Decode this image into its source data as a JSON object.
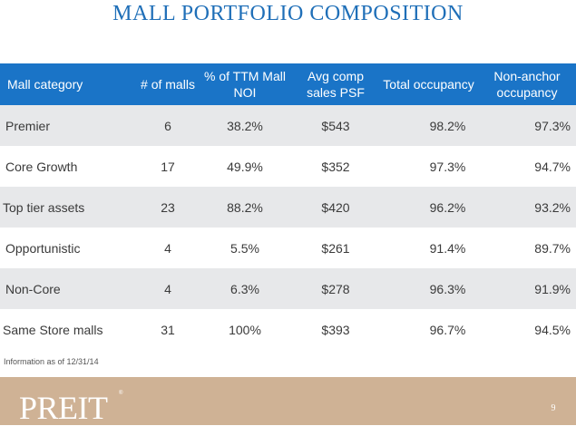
{
  "page": {
    "title": "MALL PORTFOLIO COMPOSITION",
    "footnote": "Information as of 12/31/14"
  },
  "table": {
    "headers": [
      "Mall category",
      "# of malls",
      "% of TTM Mall NOI",
      "Avg comp sales PSF",
      "Total occupancy",
      "Non-anchor occupancy"
    ],
    "rows": [
      [
        "Premier",
        "6",
        "38.2%",
        "$543",
        "98.2%",
        "97.3%"
      ],
      [
        "Core Growth",
        "17",
        "49.9%",
        "$352",
        "97.3%",
        "94.7%"
      ],
      [
        "Top tier assets",
        "23",
        "88.2%",
        "$420",
        "96.2%",
        "93.2%"
      ],
      [
        "Opportunistic",
        "4",
        "5.5%",
        "$261",
        "91.4%",
        "89.7%"
      ],
      [
        "Non-Core",
        "4",
        "6.3%",
        "$278",
        "96.3%",
        "91.9%"
      ],
      [
        "Same Store malls",
        "31",
        "100%",
        "$393",
        "96.7%",
        "94.5%"
      ]
    ]
  },
  "footer": {
    "brand": "PREIT",
    "trademark": "®",
    "page_number": "9"
  },
  "colors": {
    "title": "#1f6fb8",
    "header_bg": "#1a74c7",
    "row_shade": "#e7e8ea",
    "footer_bg": "#cfb295"
  }
}
